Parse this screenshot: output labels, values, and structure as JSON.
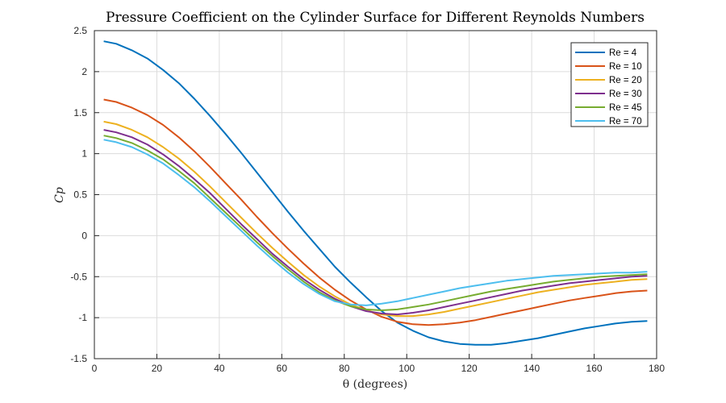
{
  "chart_data": {
    "type": "line",
    "title": "Pressure Coefficient on the Cylinder Surface for Different Reynolds Numbers",
    "xlabel": "θ (degrees)",
    "ylabel": "Cp",
    "xlim": [
      0,
      180
    ],
    "ylim": [
      -1.5,
      2.5
    ],
    "xticks": [
      "0",
      "20",
      "40",
      "60",
      "80",
      "100",
      "120",
      "140",
      "160",
      "180"
    ],
    "yticks": [
      "2.5",
      "2",
      "1.5",
      "1",
      "0.5",
      "0",
      "-0.5",
      "-1",
      "-1.5"
    ],
    "grid": true,
    "legend_position": "top-right",
    "x": [
      3,
      7,
      12,
      17,
      22,
      27,
      32,
      37,
      42,
      47,
      52,
      57,
      62,
      67,
      72,
      77,
      82,
      87,
      92,
      97,
      102,
      107,
      112,
      117,
      122,
      127,
      132,
      137,
      142,
      147,
      152,
      157,
      162,
      167,
      172,
      177
    ],
    "series": [
      {
        "name": "Re = 4",
        "color": "#0072BD",
        "values": [
          2.37,
          2.34,
          2.26,
          2.16,
          2.02,
          1.86,
          1.67,
          1.46,
          1.24,
          1.01,
          0.77,
          0.53,
          0.29,
          0.06,
          -0.16,
          -0.38,
          -0.57,
          -0.75,
          -0.92,
          -1.06,
          -1.16,
          -1.24,
          -1.29,
          -1.32,
          -1.33,
          -1.33,
          -1.31,
          -1.28,
          -1.25,
          -1.21,
          -1.17,
          -1.13,
          -1.1,
          -1.07,
          -1.05,
          -1.04
        ]
      },
      {
        "name": "Re = 10",
        "color": "#D95319",
        "values": [
          1.66,
          1.63,
          1.56,
          1.47,
          1.35,
          1.2,
          1.03,
          0.84,
          0.64,
          0.44,
          0.23,
          0.03,
          -0.16,
          -0.34,
          -0.51,
          -0.66,
          -0.79,
          -0.9,
          -0.99,
          -1.05,
          -1.08,
          -1.09,
          -1.08,
          -1.06,
          -1.03,
          -0.99,
          -0.95,
          -0.91,
          -0.87,
          -0.83,
          -0.79,
          -0.76,
          -0.73,
          -0.7,
          -0.68,
          -0.67
        ]
      },
      {
        "name": "Re = 20",
        "color": "#EDB120",
        "values": [
          1.39,
          1.36,
          1.29,
          1.2,
          1.08,
          0.94,
          0.78,
          0.6,
          0.41,
          0.22,
          0.03,
          -0.15,
          -0.32,
          -0.48,
          -0.62,
          -0.74,
          -0.84,
          -0.91,
          -0.96,
          -0.98,
          -0.98,
          -0.96,
          -0.93,
          -0.89,
          -0.85,
          -0.81,
          -0.77,
          -0.73,
          -0.69,
          -0.66,
          -0.63,
          -0.6,
          -0.58,
          -0.56,
          -0.54,
          -0.53
        ]
      },
      {
        "name": "Re = 30",
        "color": "#7E2F8E",
        "values": [
          1.29,
          1.26,
          1.2,
          1.11,
          0.99,
          0.85,
          0.69,
          0.52,
          0.33,
          0.14,
          -0.04,
          -0.22,
          -0.38,
          -0.53,
          -0.66,
          -0.77,
          -0.86,
          -0.92,
          -0.95,
          -0.96,
          -0.94,
          -0.91,
          -0.87,
          -0.83,
          -0.79,
          -0.75,
          -0.71,
          -0.67,
          -0.64,
          -0.61,
          -0.58,
          -0.56,
          -0.54,
          -0.52,
          -0.5,
          -0.49
        ]
      },
      {
        "name": "Re = 45",
        "color": "#77AC30",
        "values": [
          1.22,
          1.19,
          1.13,
          1.04,
          0.93,
          0.79,
          0.64,
          0.46,
          0.28,
          0.1,
          -0.08,
          -0.25,
          -0.41,
          -0.56,
          -0.69,
          -0.79,
          -0.86,
          -0.9,
          -0.91,
          -0.9,
          -0.87,
          -0.84,
          -0.8,
          -0.76,
          -0.72,
          -0.68,
          -0.65,
          -0.62,
          -0.59,
          -0.56,
          -0.54,
          -0.52,
          -0.5,
          -0.49,
          -0.48,
          -0.47
        ]
      },
      {
        "name": "Re = 70",
        "color": "#4DBEEE",
        "values": [
          1.17,
          1.14,
          1.08,
          0.99,
          0.88,
          0.74,
          0.59,
          0.42,
          0.24,
          0.06,
          -0.12,
          -0.29,
          -0.45,
          -0.59,
          -0.71,
          -0.8,
          -0.84,
          -0.85,
          -0.83,
          -0.8,
          -0.76,
          -0.72,
          -0.68,
          -0.64,
          -0.61,
          -0.58,
          -0.55,
          -0.53,
          -0.51,
          -0.49,
          -0.48,
          -0.47,
          -0.46,
          -0.45,
          -0.45,
          -0.44
        ]
      }
    ]
  }
}
